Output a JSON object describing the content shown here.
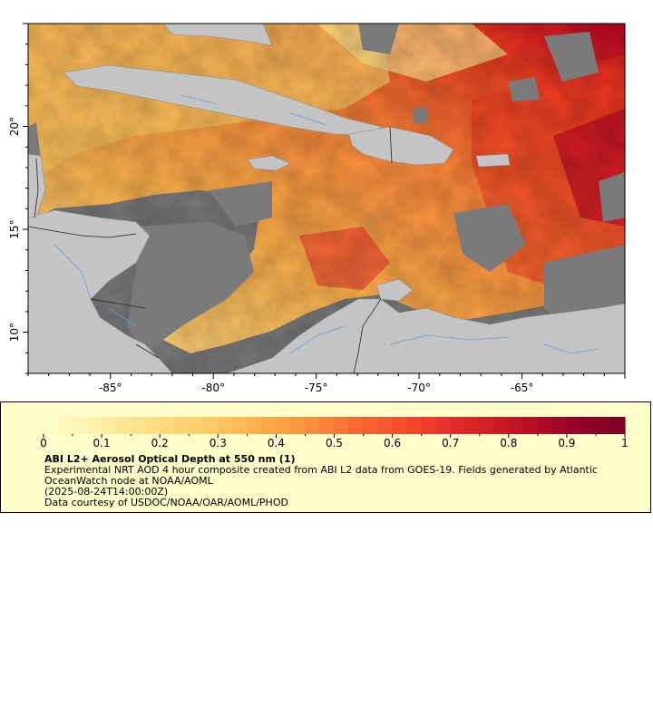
{
  "map": {
    "lon_ticks": [
      {
        "value": -85,
        "label": "-85°"
      },
      {
        "value": -80,
        "label": "-80°"
      },
      {
        "value": -75,
        "label": "-75°"
      },
      {
        "value": -70,
        "label": "-70°"
      },
      {
        "value": -65,
        "label": "-65°"
      }
    ],
    "lat_ticks": [
      {
        "value": 20,
        "label": "20°"
      },
      {
        "value": 15,
        "label": "15°"
      },
      {
        "value": 10,
        "label": "10°"
      }
    ],
    "lon_range": [
      -89,
      -60
    ],
    "lat_range": [
      8,
      25
    ],
    "colors": {
      "land": "#c4c4c4",
      "no_data": "#7a7a7a",
      "rivers": "#6aa0d8",
      "borders": "#222222"
    }
  },
  "legend": {
    "title": "ABI L2+ Aerosol Optical Depth at 550 nm (1)",
    "description": "Experimental NRT AOD 4 hour composite created from ABI L2 data from GOES-19. Fields generated by Atlantic OceanWatch node at NOAA/AOML",
    "date": "(2025-08-24T14:00:00Z)",
    "credit": "Data courtesy of USDOC/NOAA/OAR/AOML/PHOD",
    "range": [
      0,
      1
    ],
    "tick_labels": [
      "0",
      "0.1",
      "0.2",
      "0.3",
      "0.4",
      "0.5",
      "0.6",
      "0.7",
      "0.8",
      "0.9",
      "1"
    ],
    "colorscale": [
      "#ffffcc",
      "#fff3b0",
      "#ffe38f",
      "#fed676",
      "#fec45e",
      "#feaa48",
      "#fd8d3c",
      "#fc6a32",
      "#f84d2b",
      "#e9302a",
      "#d01d24",
      "#b40c26",
      "#8f0027",
      "#800026"
    ],
    "background": "#ffffcc"
  }
}
